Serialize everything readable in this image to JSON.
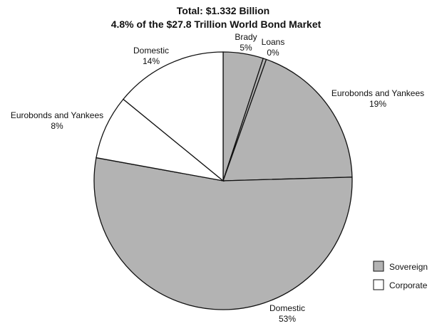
{
  "chart_data": {
    "type": "pie",
    "title": "Total: $1.332 Billion",
    "subtitle": "4.8% of the $27.8 Trillion World Bond Market",
    "slices": [
      {
        "category": "Sovereign",
        "name": "Brady",
        "pct_label": "5%",
        "value": 5
      },
      {
        "category": "Sovereign",
        "name": "Loans",
        "pct_label": "0%",
        "value": 0.4
      },
      {
        "category": "Sovereign",
        "name": "Eurobonds and Yankees",
        "pct_label": "19%",
        "value": 19
      },
      {
        "category": "Sovereign",
        "name": "Domestic",
        "pct_label": "53%",
        "value": 53
      },
      {
        "category": "Corporate",
        "name": "Eurobonds and Yankees",
        "pct_label": "8%",
        "value": 8
      },
      {
        "category": "Corporate",
        "name": "Domestic",
        "pct_label": "14%",
        "value": 14
      }
    ],
    "legend": [
      {
        "name": "Sovereign",
        "color": "#b3b3b3"
      },
      {
        "name": "Corporate",
        "color": "#ffffff"
      }
    ],
    "legend_position": "bottom-right"
  }
}
